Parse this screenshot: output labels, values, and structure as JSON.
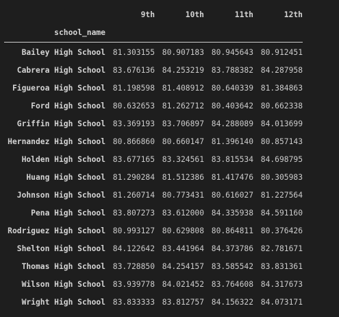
{
  "table": {
    "columns": [
      "9th",
      "10th",
      "11th",
      "12th"
    ],
    "index_name": "school_name",
    "rows": [
      {
        "name": "Bailey High School",
        "values": [
          "81.303155",
          "80.907183",
          "80.945643",
          "80.912451"
        ]
      },
      {
        "name": "Cabrera High School",
        "values": [
          "83.676136",
          "84.253219",
          "83.788382",
          "84.287958"
        ]
      },
      {
        "name": "Figueroa High School",
        "values": [
          "81.198598",
          "81.408912",
          "80.640339",
          "81.384863"
        ]
      },
      {
        "name": "Ford High School",
        "values": [
          "80.632653",
          "81.262712",
          "80.403642",
          "80.662338"
        ]
      },
      {
        "name": "Griffin High School",
        "values": [
          "83.369193",
          "83.706897",
          "84.288089",
          "84.013699"
        ]
      },
      {
        "name": "Hernandez High School",
        "values": [
          "80.866860",
          "80.660147",
          "81.396140",
          "80.857143"
        ]
      },
      {
        "name": "Holden High School",
        "values": [
          "83.677165",
          "83.324561",
          "83.815534",
          "84.698795"
        ]
      },
      {
        "name": "Huang High School",
        "values": [
          "81.290284",
          "81.512386",
          "81.417476",
          "80.305983"
        ]
      },
      {
        "name": "Johnson High School",
        "values": [
          "81.260714",
          "80.773431",
          "80.616027",
          "81.227564"
        ]
      },
      {
        "name": "Pena High School",
        "values": [
          "83.807273",
          "83.612000",
          "84.335938",
          "84.591160"
        ]
      },
      {
        "name": "Rodriguez High School",
        "values": [
          "80.993127",
          "80.629808",
          "80.864811",
          "80.376426"
        ]
      },
      {
        "name": "Shelton High School",
        "values": [
          "84.122642",
          "83.441964",
          "84.373786",
          "82.781671"
        ]
      },
      {
        "name": "Thomas High School",
        "values": [
          "83.728850",
          "84.254157",
          "83.585542",
          "83.831361"
        ]
      },
      {
        "name": "Wilson High School",
        "values": [
          "83.939778",
          "84.021452",
          "83.764608",
          "84.317673"
        ]
      },
      {
        "name": "Wright High School",
        "values": [
          "83.833333",
          "83.812757",
          "84.156322",
          "84.073171"
        ]
      }
    ]
  }
}
